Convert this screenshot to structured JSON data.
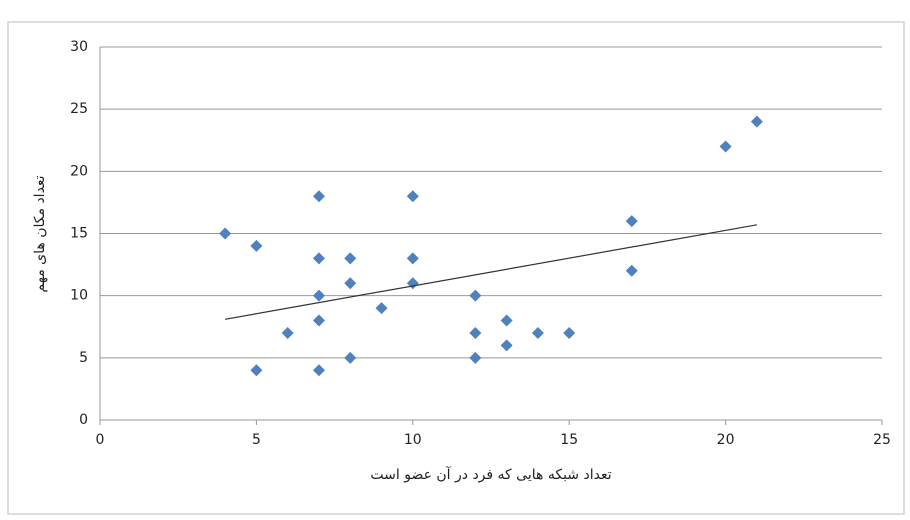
{
  "chart_data": {
    "type": "scatter",
    "x_label": "تعداد شبکه هایی که فرد در آن عضو است",
    "y_label": "تعداد مکان های مهم",
    "x": [
      4,
      5,
      5,
      6,
      7,
      7,
      7,
      7,
      7,
      8,
      8,
      8,
      9,
      10,
      10,
      10,
      12,
      12,
      12,
      13,
      13,
      14,
      15,
      17,
      17,
      20,
      21
    ],
    "values": [
      15,
      14,
      4,
      7,
      18,
      13,
      10,
      8,
      4,
      13,
      11,
      5,
      9,
      18,
      13,
      11,
      10,
      7,
      5,
      8,
      6,
      7,
      7,
      16,
      12,
      22,
      24
    ],
    "color": "#4f81bd",
    "trendline": {
      "x": [
        4,
        21
      ],
      "y": [
        8.1,
        15.7
      ],
      "color": "#333333"
    },
    "xlim": [
      0,
      25
    ],
    "xticks": [
      0,
      5,
      10,
      15,
      20,
      25
    ],
    "ylim": [
      0,
      30
    ],
    "yticks": [
      0,
      5,
      10,
      15,
      20,
      25,
      30
    ],
    "grid": true
  }
}
